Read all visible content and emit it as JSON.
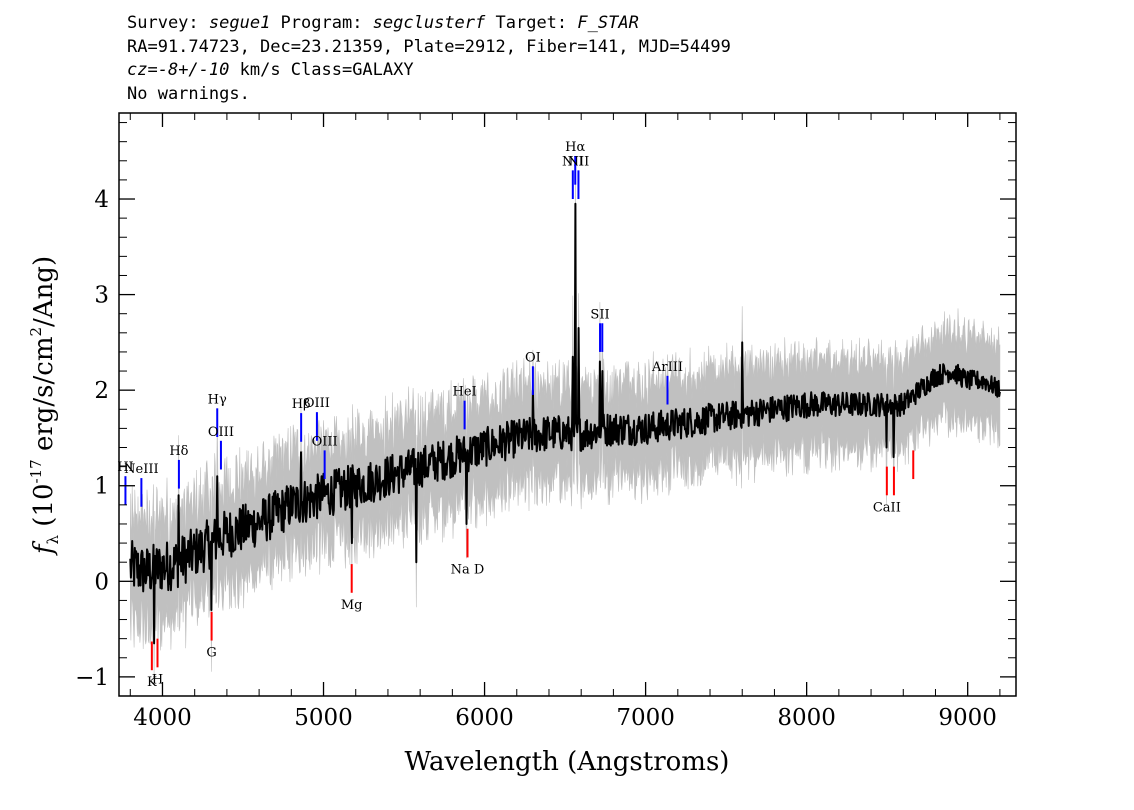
{
  "header": {
    "line1": {
      "survey_label": "Survey: ",
      "survey": "segue1",
      "program_label": " Program: ",
      "program": "segclusterf",
      "target_label": " Target: ",
      "target": "F_STAR"
    },
    "line2": "RA=91.74723, Dec=23.21359, Plate=2912, Fiber=141, MJD=54499",
    "line3": {
      "cz_label": "cz",
      "cz_value": "=-8+/-10",
      "rest": " km/s Class=GALAXY"
    },
    "line4": "No warnings."
  },
  "chart_data": {
    "type": "line",
    "title": "",
    "xlabel": "Wavelength (Angstroms)",
    "ylabel": "f_λ (10^-17 erg/s/cm^2/Ang)",
    "xlim": [
      3730,
      9300
    ],
    "ylim": [
      -1.2,
      4.9
    ],
    "xticks": [
      4000,
      5000,
      6000,
      7000,
      8000,
      9000
    ],
    "yticks": [
      -1,
      0,
      1,
      2,
      3,
      4
    ],
    "grid": false,
    "colors": {
      "flux": "#000000",
      "error_band": "#c0c0c0",
      "emission": "#0000ff",
      "absorption": "#ff0000"
    },
    "series": [
      {
        "style": "black line",
        "continuum": [
          [
            3800,
            0.15
          ],
          [
            3900,
            0.1
          ],
          [
            4000,
            0.15
          ],
          [
            4100,
            0.2
          ],
          [
            4200,
            0.3
          ],
          [
            4300,
            0.4
          ],
          [
            4400,
            0.5
          ],
          [
            4500,
            0.55
          ],
          [
            4600,
            0.62
          ],
          [
            4700,
            0.7
          ],
          [
            4800,
            0.8
          ],
          [
            4900,
            0.85
          ],
          [
            5000,
            0.9
          ],
          [
            5100,
            0.95
          ],
          [
            5200,
            1.0
          ],
          [
            5400,
            1.1
          ],
          [
            5600,
            1.2
          ],
          [
            5800,
            1.3
          ],
          [
            6000,
            1.4
          ],
          [
            6200,
            1.5
          ],
          [
            6400,
            1.55
          ],
          [
            6600,
            1.55
          ],
          [
            6800,
            1.6
          ],
          [
            7000,
            1.6
          ],
          [
            7200,
            1.65
          ],
          [
            7400,
            1.7
          ],
          [
            7600,
            1.75
          ],
          [
            7800,
            1.8
          ],
          [
            8000,
            1.85
          ],
          [
            8200,
            1.85
          ],
          [
            8400,
            1.85
          ],
          [
            8600,
            1.85
          ],
          [
            8800,
            2.15
          ],
          [
            8900,
            2.2
          ],
          [
            9000,
            2.1
          ],
          [
            9100,
            2.1
          ],
          [
            9200,
            2.0
          ]
        ],
        "peaks": [
          [
            3950,
            -0.65
          ],
          [
            4102,
            0.9
          ],
          [
            4305,
            -0.3
          ],
          [
            4340,
            1.1
          ],
          [
            4861,
            1.35
          ],
          [
            5175,
            0.4
          ],
          [
            5577,
            0.2
          ],
          [
            5890,
            0.6
          ],
          [
            6300,
            2.0
          ],
          [
            6548,
            2.35
          ],
          [
            6563,
            3.95
          ],
          [
            6583,
            2.65
          ],
          [
            6717,
            2.3
          ],
          [
            6731,
            2.2
          ],
          [
            7600,
            2.5
          ],
          [
            8498,
            1.4
          ],
          [
            8542,
            1.3
          ]
        ]
      },
      {
        "style": "gray error band",
        "half_width_start": 0.6,
        "half_width_end": 0.5
      }
    ],
    "line_markers": [
      {
        "label": "HI",
        "wavelength": 3770,
        "type": "emission",
        "y_top": 1.1,
        "y_bottom": 0.8
      },
      {
        "label": "NeIII",
        "wavelength": 3869,
        "type": "emission",
        "y_top": 1.08,
        "y_bottom": 0.78
      },
      {
        "label": "Hδ",
        "wavelength": 4102,
        "type": "emission",
        "y_top": 1.27,
        "y_bottom": 0.97
      },
      {
        "label": "Hγ",
        "wavelength": 4340,
        "type": "emission",
        "y_top": 1.81,
        "y_bottom": 1.51
      },
      {
        "label": "OIII",
        "wavelength": 4363,
        "type": "emission",
        "y_top": 1.47,
        "y_bottom": 1.17
      },
      {
        "label": "Hβ",
        "wavelength": 4861,
        "type": "emission",
        "y_top": 1.76,
        "y_bottom": 1.46
      },
      {
        "label": "OIII",
        "wavelength": 4959,
        "type": "emission",
        "y_top": 1.77,
        "y_bottom": 1.47
      },
      {
        "label": "OIII",
        "wavelength": 5007,
        "type": "emission",
        "y_top": 1.37,
        "y_bottom": 1.07
      },
      {
        "label": "HeI",
        "wavelength": 5876,
        "type": "emission",
        "y_top": 1.89,
        "y_bottom": 1.59
      },
      {
        "label": "OI",
        "wavelength": 6300,
        "type": "emission",
        "y_top": 2.25,
        "y_bottom": 1.95
      },
      {
        "label": "NII",
        "wavelength": 6548,
        "type": "emission",
        "y_top": 4.3,
        "y_bottom": 4.0
      },
      {
        "label": "Hα",
        "wavelength": 6563,
        "type": "emission",
        "y_top": 4.45,
        "y_bottom": 4.15
      },
      {
        "label": "NII",
        "wavelength": 6583,
        "type": "emission",
        "y_top": 4.3,
        "y_bottom": 4.0
      },
      {
        "label": "SII",
        "wavelength": 6717,
        "type": "emission",
        "y_top": 2.7,
        "y_bottom": 2.4
      },
      {
        "label": "",
        "wavelength": 6731,
        "type": "emission",
        "y_top": 2.7,
        "y_bottom": 2.4
      },
      {
        "label": "ArIII",
        "wavelength": 7136,
        "type": "emission",
        "y_top": 2.15,
        "y_bottom": 1.85
      },
      {
        "label": "K",
        "wavelength": 3934,
        "type": "absorption",
        "y_top": -0.63,
        "y_bottom": -0.93
      },
      {
        "label": "H",
        "wavelength": 3969,
        "type": "absorption",
        "y_top": -0.6,
        "y_bottom": -0.9
      },
      {
        "label": "G",
        "wavelength": 4305,
        "type": "absorption",
        "y_top": -0.32,
        "y_bottom": -0.62
      },
      {
        "label": "Mg",
        "wavelength": 5175,
        "type": "absorption",
        "y_top": 0.18,
        "y_bottom": -0.12
      },
      {
        "label": "Na D",
        "wavelength": 5894,
        "type": "absorption",
        "y_top": 0.55,
        "y_bottom": 0.25
      },
      {
        "label": "CaII",
        "wavelength": 8498,
        "type": "absorption",
        "y_top": 1.2,
        "y_bottom": 0.9
      },
      {
        "label": "",
        "wavelength": 8542,
        "type": "absorption",
        "y_top": 1.2,
        "y_bottom": 0.9
      },
      {
        "label": "",
        "wavelength": 8662,
        "type": "absorption",
        "y_top": 1.37,
        "y_bottom": 1.07
      }
    ]
  }
}
